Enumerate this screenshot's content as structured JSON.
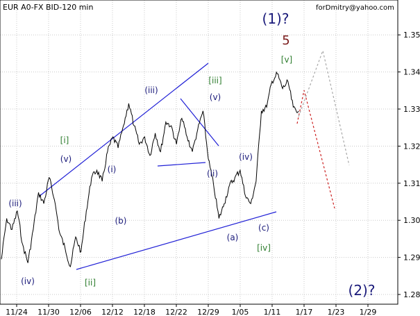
{
  "chart_data": {
    "type": "line",
    "title": "EUR A0-FX BID-120 min",
    "watermark": "forDmitry@yahoo.com",
    "x_labels": [
      "11/24",
      "11/30",
      "12/06",
      "12/12",
      "12/18",
      "12/22",
      "12/29",
      "1/05",
      "1/11",
      "1/17",
      "1/23",
      "1/29"
    ],
    "y_ticks": [
      "1.28",
      "1.29",
      "1.30",
      "1.31",
      "1.32",
      "1.33",
      "1.34",
      "1.35"
    ],
    "ylim": [
      1.275,
      1.357
    ],
    "grid": true,
    "series": [
      {
        "values": [
          1.2895,
          1.3005,
          1.2975,
          1.3025,
          1.2935,
          1.2885,
          1.2975,
          1.3075,
          1.3045,
          1.3115,
          1.3055,
          1.2965,
          1.2925,
          1.2875,
          1.2955,
          1.2915,
          1.3025,
          1.3115,
          1.3135,
          1.3105,
          1.3185,
          1.3225,
          1.3195,
          1.3255,
          1.3315,
          1.3255,
          1.3205,
          1.3225,
          1.3175,
          1.3235,
          1.3185,
          1.3265,
          1.3255,
          1.3205,
          1.3275,
          1.3225,
          1.3185,
          1.3245,
          1.3295,
          1.3165,
          1.3095,
          1.3005,
          1.3045,
          1.3095,
          1.3115,
          1.3135,
          1.3065,
          1.3045,
          1.3105,
          1.3295,
          1.3305,
          1.3375,
          1.3395,
          1.3355,
          1.3375,
          1.3305,
          1.3295
        ]
      }
    ],
    "wave_labels": [
      {
        "text": "(1)?",
        "color": "#1a1a7a",
        "size": 20
      },
      {
        "text": "5",
        "color": "#7a1a1a",
        "size": 18
      },
      {
        "text": "[v]",
        "color": "#2e7d2e",
        "size": 12
      },
      {
        "text": "[iii]",
        "color": "#2e7d2e",
        "size": 12
      },
      {
        "text": "(v)",
        "color": "#1a1a7a",
        "size": 12
      },
      {
        "text": "(iii)",
        "color": "#1a1a7a",
        "size": 12
      },
      {
        "text": "[i]",
        "color": "#2e7d2e",
        "size": 12
      },
      {
        "text": "(v)",
        "color": "#1a1a7a",
        "size": 12
      },
      {
        "text": "(i)",
        "color": "#1a1a7a",
        "size": 12
      },
      {
        "text": "(b)",
        "color": "#1a1a7a",
        "size": 12
      },
      {
        "text": "(iv)",
        "color": "#1a1a7a",
        "size": 12
      },
      {
        "text": "(iii)",
        "color": "#1a1a7a",
        "size": 12
      },
      {
        "text": "(ii)",
        "color": "#1a1a7a",
        "size": 12
      },
      {
        "text": "(a)",
        "color": "#1a1a7a",
        "size": 12
      },
      {
        "text": "(c)",
        "color": "#1a1a7a",
        "size": 12
      },
      {
        "text": "[iv]",
        "color": "#2e7d2e",
        "size": 12
      },
      {
        "text": "(iv)",
        "color": "#1a1a7a",
        "size": 12
      },
      {
        "text": "[ii]",
        "color": "#2e7d2e",
        "size": 12
      },
      {
        "text": "(2)?",
        "color": "#1a1a7a",
        "size": 20
      }
    ],
    "colors": {
      "price": "#000000",
      "trendline": "#1f1fd6",
      "forecast_primary": "#cc1f1f",
      "forecast_alt": "#a8a8a8",
      "grid": "#c8c8c8"
    }
  }
}
